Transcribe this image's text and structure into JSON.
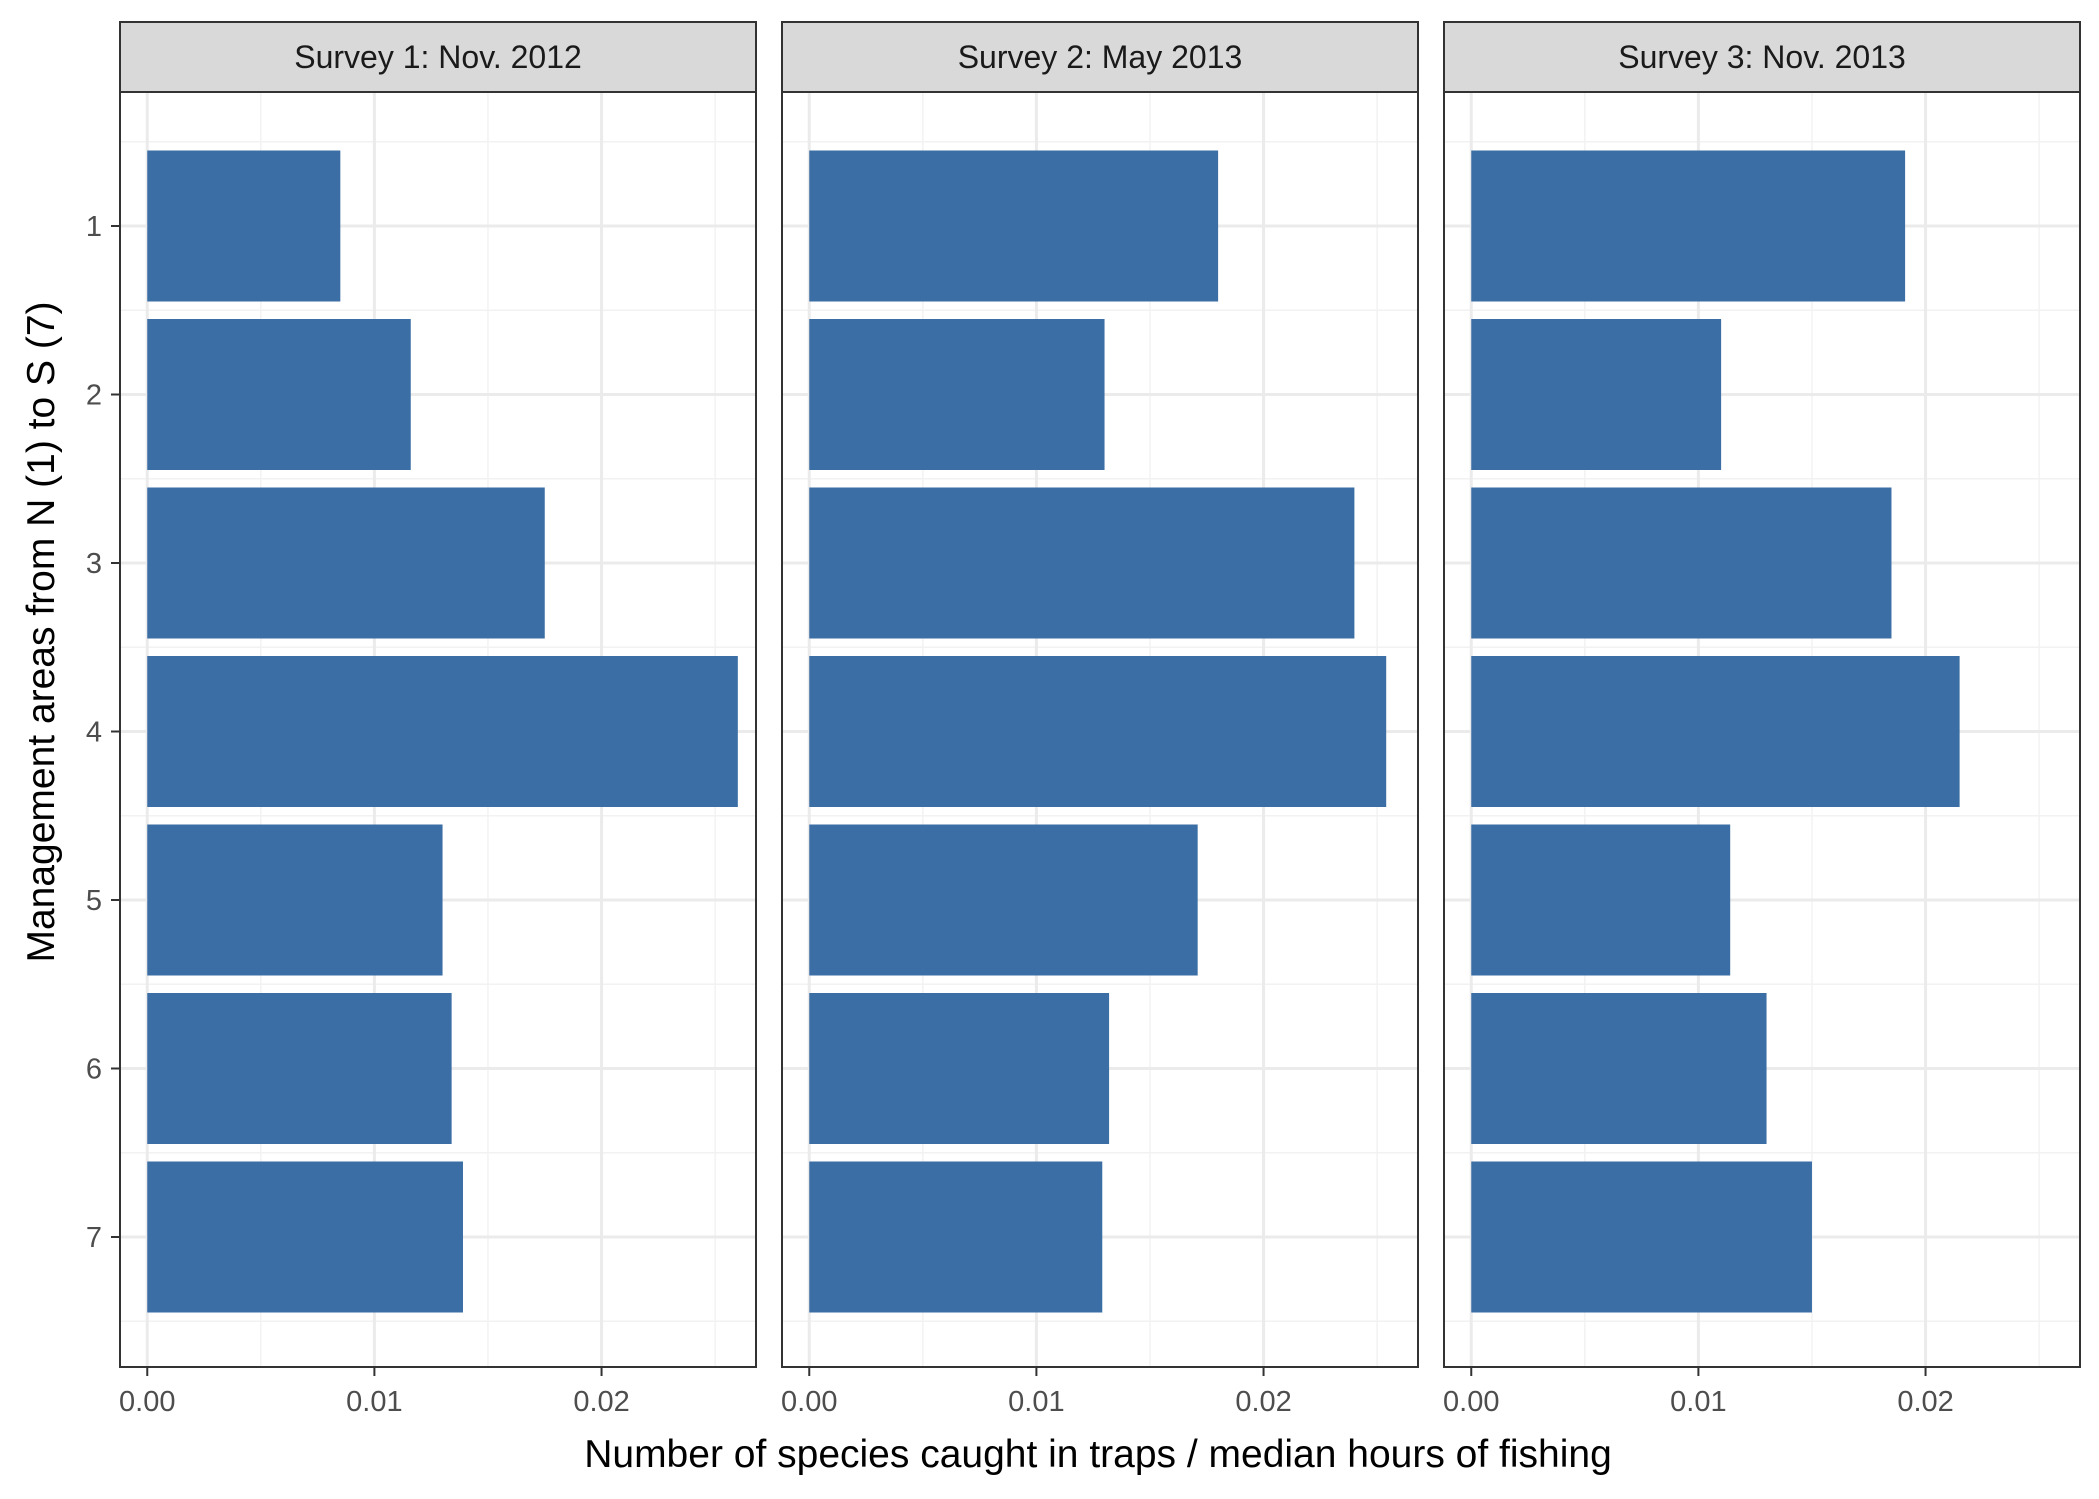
{
  "chart_data": {
    "type": "bar",
    "orientation": "horizontal",
    "xlabel": "Number of species caught in traps / median hours of  fishing",
    "ylabel": "Management areas from N (1) to S (7)",
    "categories": [
      "1",
      "2",
      "3",
      "4",
      "5",
      "6",
      "7"
    ],
    "xlim": [
      -0.0012,
      0.0268
    ],
    "xticks": [
      0.0,
      0.01,
      0.02
    ],
    "xtick_labels": [
      "0.00",
      "0.01",
      "0.02"
    ],
    "grid": true,
    "bar_color": "#3a6ea5",
    "panels": [
      {
        "title": "Survey 1: Nov. 2012",
        "values": [
          0.0085,
          0.0116,
          0.0175,
          0.026,
          0.013,
          0.0134,
          0.0139
        ]
      },
      {
        "title": "Survey 2: May 2013",
        "values": [
          0.018,
          0.013,
          0.024,
          0.0254,
          0.0171,
          0.0132,
          0.0129
        ]
      },
      {
        "title": "Survey 3: Nov. 2013",
        "values": [
          0.0191,
          0.011,
          0.0185,
          0.0215,
          0.0114,
          0.013,
          0.015
        ]
      }
    ]
  }
}
